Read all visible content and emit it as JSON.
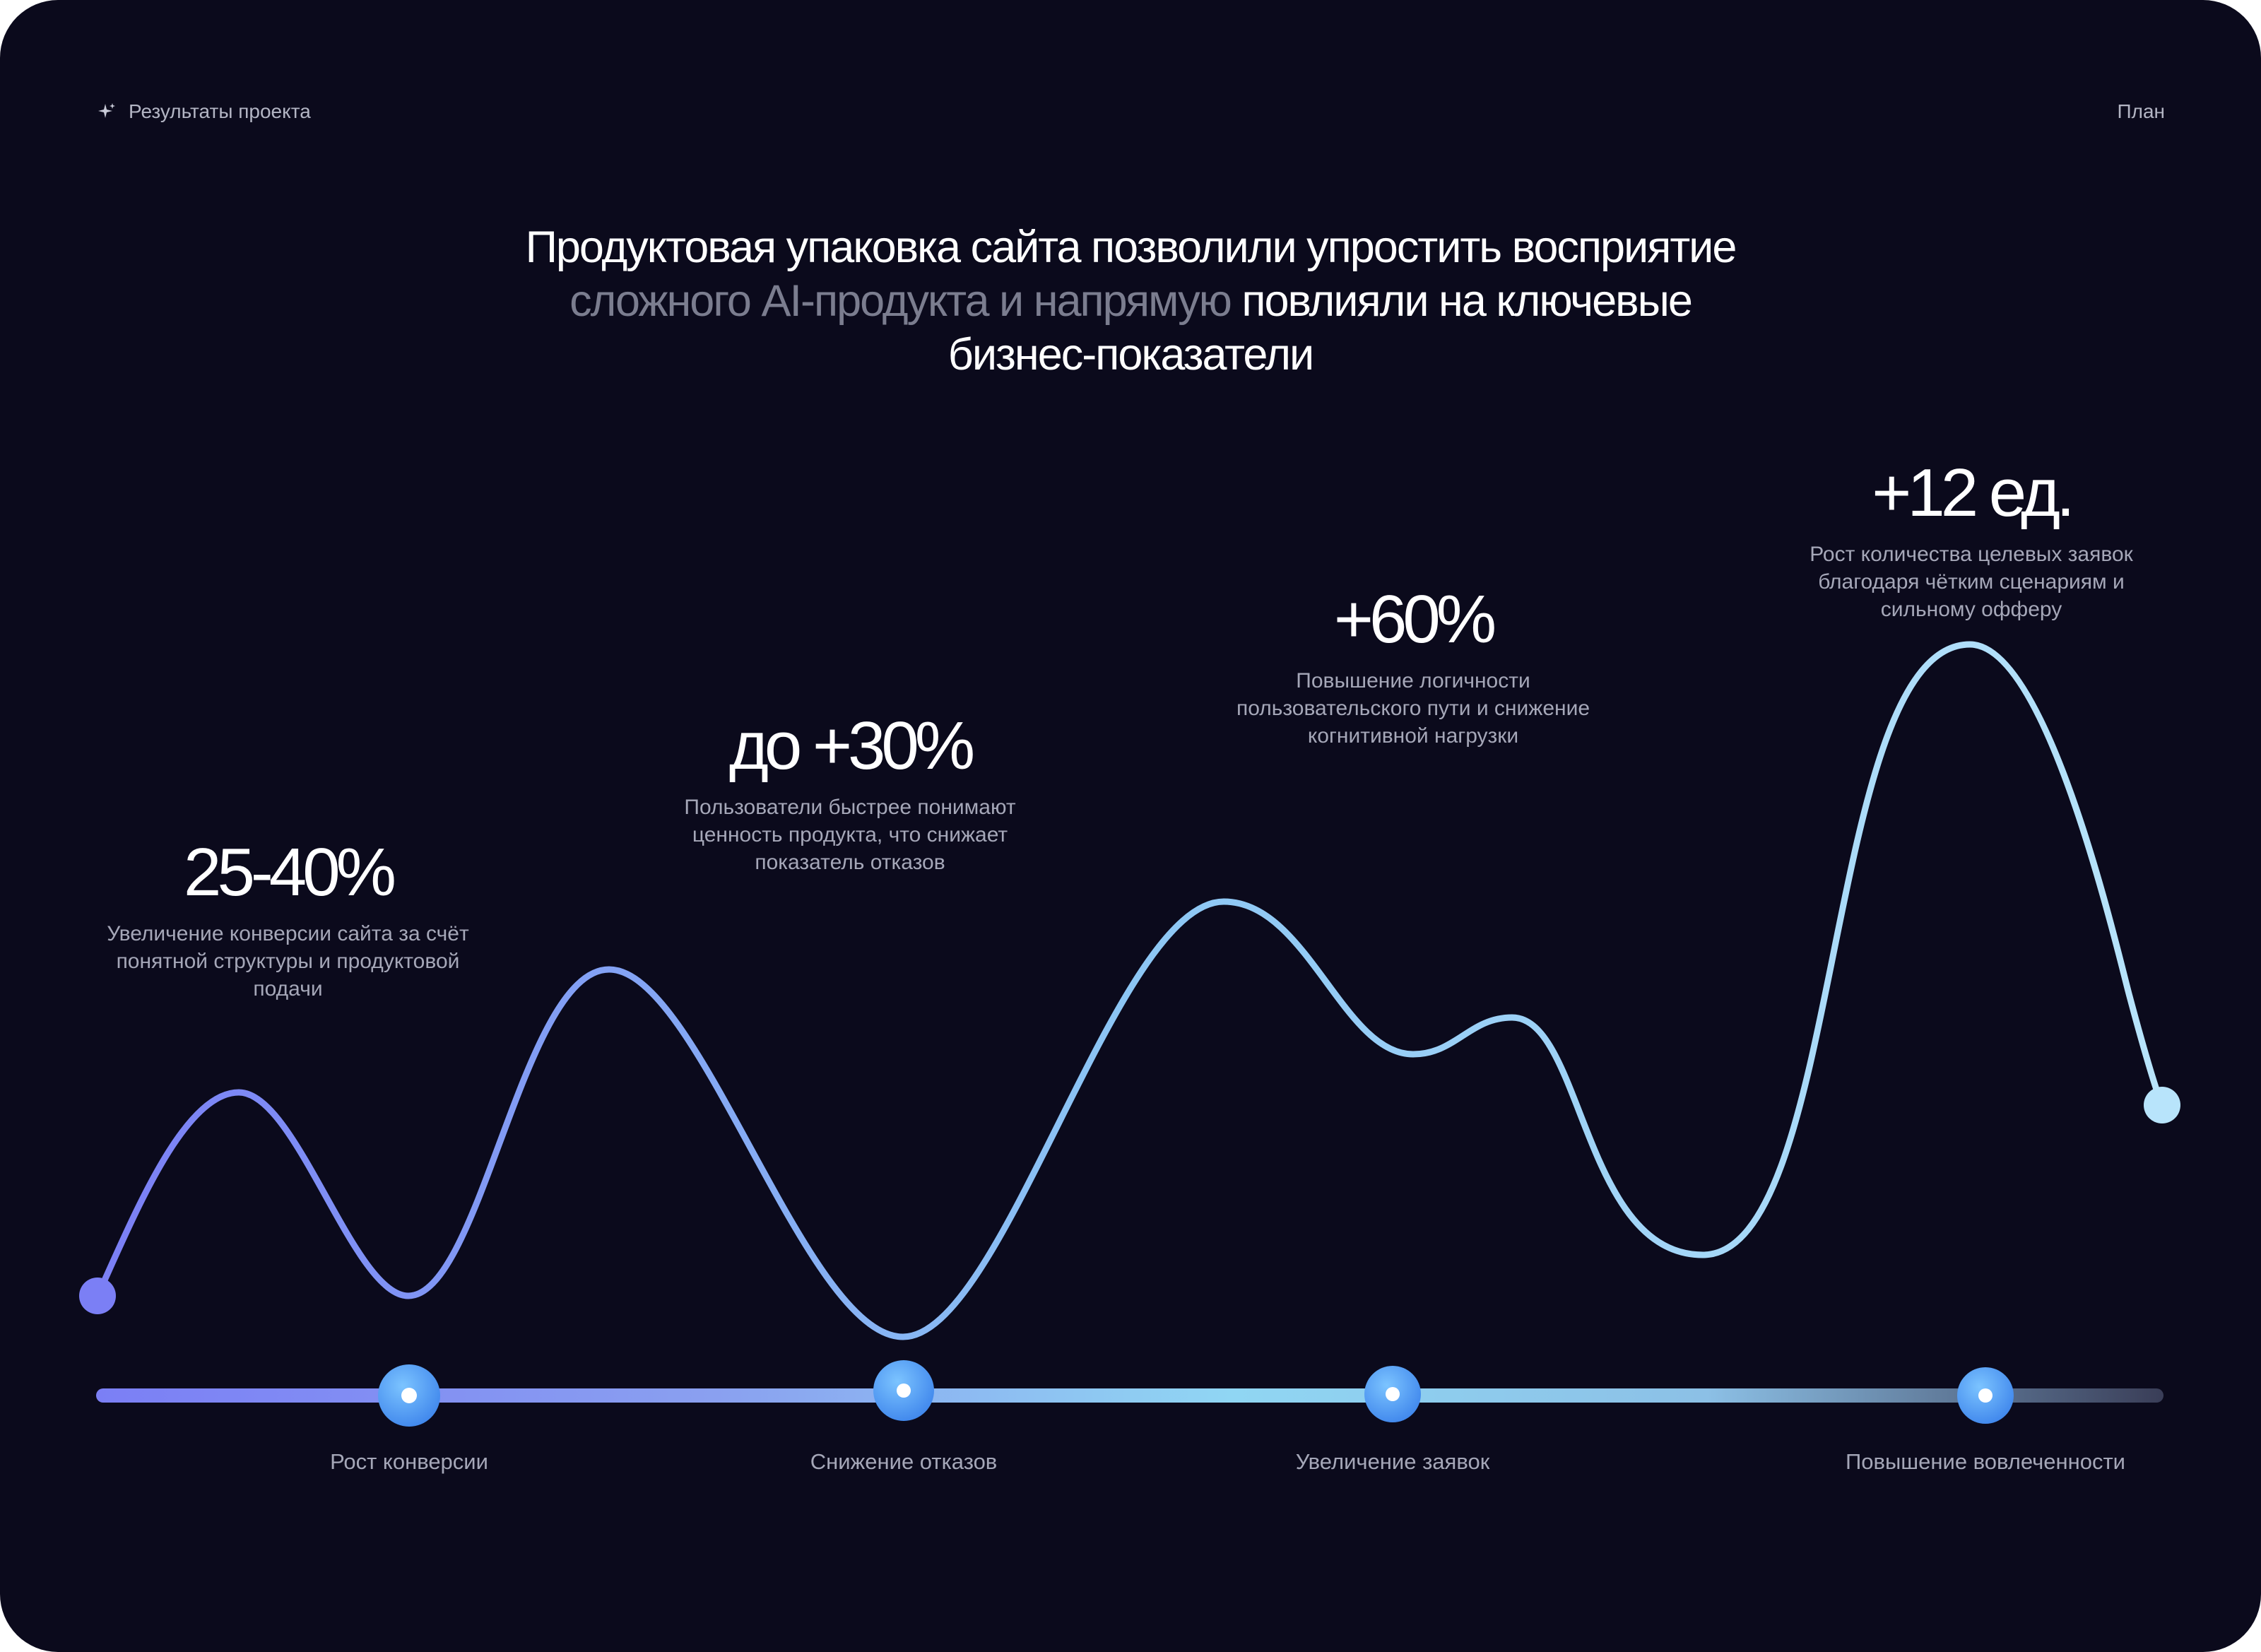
{
  "header": {
    "section_label": "Результаты проекта",
    "section_icon": "sparkle-icon",
    "nav_label": "План"
  },
  "headline": {
    "part1": "Продуктовая упаковка сайта позволили упростить восприятие ",
    "part2_muted": "сложного AI-продукта и напрямую",
    "part3": " повлияли на ключевые бизнес-показатели"
  },
  "metrics": [
    {
      "value": "25-40%",
      "description": "Увеличение конверсии сайта за счёт понятной структуры и продуктовой подачи"
    },
    {
      "value": "до +30%",
      "description": "Пользователи быстрее понимают ценность продукта, что снижает показатель отказов"
    },
    {
      "value": "+60%",
      "description": "Повышение логичности пользовательского пути и снижение когнитивной нагрузки"
    },
    {
      "value": "+12 ед.",
      "description": "Рост количества целевых заявок благодаря чётким сценариям и сильному офферу"
    }
  ],
  "timeline": {
    "stages": [
      "Рост конверсии",
      "Снижение отказов",
      "Увеличение заявок",
      "Повышение вовлеченности"
    ]
  },
  "colors": {
    "background": "#0b0a1c",
    "gradient_start": "#7b7ff5",
    "gradient_end": "#b8e4fb",
    "node_blue": "#4a9cf5",
    "text_muted": "#a5a7b8"
  }
}
